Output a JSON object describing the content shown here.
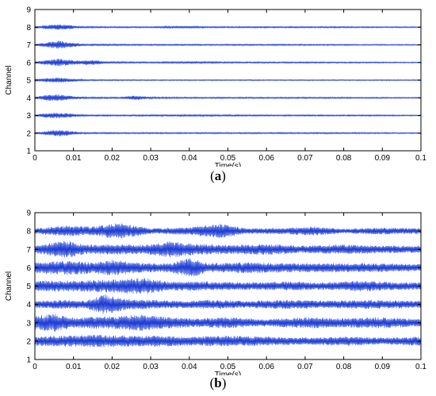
{
  "chart_data": [
    {
      "type": "line",
      "panel_label": "a",
      "xlabel": "Time(s)",
      "ylabel": "Channel",
      "xlim": [
        0,
        0.1
      ],
      "ylim": [
        1,
        9
      ],
      "xticks": [
        "0",
        "0.01",
        "0.02",
        "0.03",
        "0.04",
        "0.05",
        "0.06",
        "0.07",
        "0.08",
        "0.09",
        "0.1"
      ],
      "yticks": [
        "1",
        "2",
        "3",
        "4",
        "5",
        "6",
        "7",
        "8",
        "9"
      ],
      "line_color": "#1f3fd6",
      "series": [
        {
          "channel": 8,
          "envelope": [
            [
              0,
              0.04
            ],
            [
              0.003,
              0.12
            ],
            [
              0.006,
              0.16
            ],
            [
              0.009,
              0.12
            ],
            [
              0.012,
              0.05
            ],
            [
              0.02,
              0.04
            ],
            [
              0.03,
              0.04
            ],
            [
              0.04,
              0.07
            ],
            [
              0.045,
              0.04
            ],
            [
              0.06,
              0.04
            ],
            [
              0.08,
              0.04
            ],
            [
              0.1,
              0.03
            ]
          ]
        },
        {
          "channel": 7,
          "envelope": [
            [
              0,
              0.04
            ],
            [
              0.003,
              0.15
            ],
            [
              0.006,
              0.25
            ],
            [
              0.009,
              0.15
            ],
            [
              0.013,
              0.05
            ],
            [
              0.03,
              0.04
            ],
            [
              0.05,
              0.04
            ],
            [
              0.07,
              0.04
            ],
            [
              0.1,
              0.03
            ]
          ]
        },
        {
          "channel": 6,
          "envelope": [
            [
              0,
              0.04
            ],
            [
              0.003,
              0.15
            ],
            [
              0.006,
              0.22
            ],
            [
              0.009,
              0.15
            ],
            [
              0.012,
              0.1
            ],
            [
              0.015,
              0.18
            ],
            [
              0.018,
              0.06
            ],
            [
              0.03,
              0.04
            ],
            [
              0.04,
              0.06
            ],
            [
              0.05,
              0.04
            ],
            [
              0.07,
              0.04
            ],
            [
              0.1,
              0.03
            ]
          ]
        },
        {
          "channel": 5,
          "envelope": [
            [
              0,
              0.05
            ],
            [
              0.003,
              0.12
            ],
            [
              0.006,
              0.16
            ],
            [
              0.009,
              0.1
            ],
            [
              0.013,
              0.04
            ],
            [
              0.03,
              0.03
            ],
            [
              0.06,
              0.03
            ],
            [
              0.1,
              0.03
            ]
          ]
        },
        {
          "channel": 4,
          "envelope": [
            [
              0,
              0.05
            ],
            [
              0.003,
              0.16
            ],
            [
              0.006,
              0.2
            ],
            [
              0.009,
              0.12
            ],
            [
              0.013,
              0.05
            ],
            [
              0.022,
              0.04
            ],
            [
              0.026,
              0.13
            ],
            [
              0.03,
              0.05
            ],
            [
              0.04,
              0.04
            ],
            [
              0.06,
              0.04
            ],
            [
              0.08,
              0.04
            ],
            [
              0.1,
              0.03
            ]
          ]
        },
        {
          "channel": 3,
          "envelope": [
            [
              0,
              0.04
            ],
            [
              0.003,
              0.14
            ],
            [
              0.006,
              0.17
            ],
            [
              0.009,
              0.12
            ],
            [
              0.012,
              0.05
            ],
            [
              0.02,
              0.04
            ],
            [
              0.04,
              0.05
            ],
            [
              0.06,
              0.04
            ],
            [
              0.09,
              0.04
            ],
            [
              0.1,
              0.03
            ]
          ]
        },
        {
          "channel": 2,
          "envelope": [
            [
              0,
              0.04
            ],
            [
              0.003,
              0.12
            ],
            [
              0.006,
              0.2
            ],
            [
              0.009,
              0.13
            ],
            [
              0.012,
              0.05
            ],
            [
              0.02,
              0.04
            ],
            [
              0.04,
              0.04
            ],
            [
              0.06,
              0.04
            ],
            [
              0.08,
              0.04
            ],
            [
              0.1,
              0.03
            ]
          ]
        }
      ]
    },
    {
      "type": "line",
      "panel_label": "b",
      "xlabel": "Time(s)",
      "ylabel": "Channel",
      "xlim": [
        0,
        0.1
      ],
      "ylim": [
        1,
        9
      ],
      "xticks": [
        "0",
        "0.01",
        "0.02",
        "0.03",
        "0.04",
        "0.05",
        "0.06",
        "0.07",
        "0.08",
        "0.09",
        "0.1"
      ],
      "yticks": [
        "1",
        "2",
        "3",
        "4",
        "5",
        "6",
        "7",
        "8",
        "9"
      ],
      "line_color": "#1f3fd6",
      "series": [
        {
          "channel": 8,
          "envelope": [
            [
              0,
              0.15
            ],
            [
              0.008,
              0.3
            ],
            [
              0.015,
              0.25
            ],
            [
              0.022,
              0.45
            ],
            [
              0.03,
              0.15
            ],
            [
              0.04,
              0.22
            ],
            [
              0.048,
              0.4
            ],
            [
              0.055,
              0.15
            ],
            [
              0.065,
              0.18
            ],
            [
              0.072,
              0.25
            ],
            [
              0.08,
              0.12
            ],
            [
              0.09,
              0.2
            ],
            [
              0.1,
              0.15
            ]
          ]
        },
        {
          "channel": 7,
          "envelope": [
            [
              0,
              0.2
            ],
            [
              0.008,
              0.5
            ],
            [
              0.013,
              0.25
            ],
            [
              0.02,
              0.28
            ],
            [
              0.028,
              0.25
            ],
            [
              0.035,
              0.45
            ],
            [
              0.042,
              0.3
            ],
            [
              0.05,
              0.25
            ],
            [
              0.06,
              0.3
            ],
            [
              0.07,
              0.2
            ],
            [
              0.08,
              0.28
            ],
            [
              0.09,
              0.2
            ],
            [
              0.1,
              0.2
            ]
          ]
        },
        {
          "channel": 6,
          "envelope": [
            [
              0,
              0.3
            ],
            [
              0.005,
              0.35
            ],
            [
              0.01,
              0.4
            ],
            [
              0.015,
              0.3
            ],
            [
              0.02,
              0.45
            ],
            [
              0.028,
              0.25
            ],
            [
              0.035,
              0.25
            ],
            [
              0.04,
              0.55
            ],
            [
              0.045,
              0.25
            ],
            [
              0.055,
              0.3
            ],
            [
              0.065,
              0.25
            ],
            [
              0.075,
              0.25
            ],
            [
              0.085,
              0.25
            ],
            [
              0.1,
              0.2
            ]
          ]
        },
        {
          "channel": 5,
          "envelope": [
            [
              0,
              0.3
            ],
            [
              0.01,
              0.3
            ],
            [
              0.02,
              0.35
            ],
            [
              0.028,
              0.45
            ],
            [
              0.035,
              0.25
            ],
            [
              0.045,
              0.25
            ],
            [
              0.055,
              0.2
            ],
            [
              0.065,
              0.25
            ],
            [
              0.075,
              0.2
            ],
            [
              0.085,
              0.3
            ],
            [
              0.095,
              0.2
            ],
            [
              0.1,
              0.2
            ]
          ]
        },
        {
          "channel": 4,
          "envelope": [
            [
              0,
              0.2
            ],
            [
              0.008,
              0.25
            ],
            [
              0.013,
              0.2
            ],
            [
              0.018,
              0.55
            ],
            [
              0.024,
              0.3
            ],
            [
              0.03,
              0.25
            ],
            [
              0.038,
              0.2
            ],
            [
              0.045,
              0.25
            ],
            [
              0.055,
              0.2
            ],
            [
              0.065,
              0.25
            ],
            [
              0.075,
              0.2
            ],
            [
              0.085,
              0.25
            ],
            [
              0.1,
              0.2
            ]
          ]
        },
        {
          "channel": 3,
          "envelope": [
            [
              0,
              0.4
            ],
            [
              0.005,
              0.5
            ],
            [
              0.01,
              0.3
            ],
            [
              0.02,
              0.35
            ],
            [
              0.028,
              0.45
            ],
            [
              0.035,
              0.3
            ],
            [
              0.042,
              0.25
            ],
            [
              0.05,
              0.3
            ],
            [
              0.06,
              0.2
            ],
            [
              0.07,
              0.3
            ],
            [
              0.08,
              0.25
            ],
            [
              0.09,
              0.3
            ],
            [
              0.1,
              0.2
            ]
          ]
        },
        {
          "channel": 2,
          "envelope": [
            [
              0,
              0.25
            ],
            [
              0.008,
              0.3
            ],
            [
              0.015,
              0.35
            ],
            [
              0.025,
              0.3
            ],
            [
              0.032,
              0.3
            ],
            [
              0.04,
              0.25
            ],
            [
              0.05,
              0.3
            ],
            [
              0.06,
              0.25
            ],
            [
              0.07,
              0.2
            ],
            [
              0.08,
              0.25
            ],
            [
              0.09,
              0.2
            ],
            [
              0.1,
              0.25
            ]
          ]
        }
      ]
    }
  ]
}
